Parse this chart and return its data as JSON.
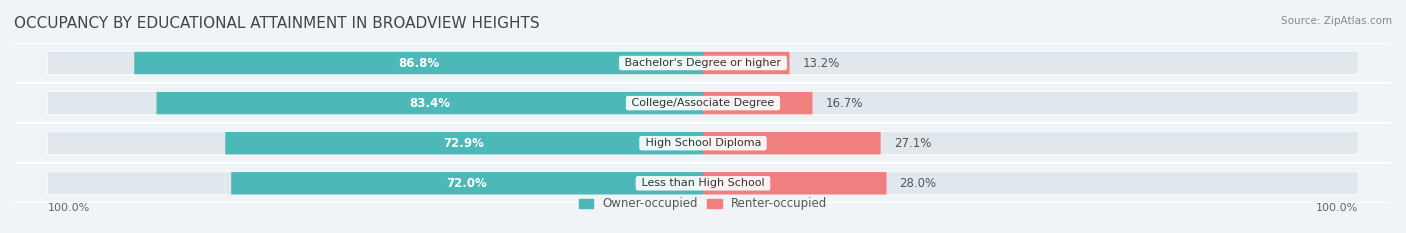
{
  "title": "OCCUPANCY BY EDUCATIONAL ATTAINMENT IN BROADVIEW HEIGHTS",
  "source": "Source: ZipAtlas.com",
  "categories": [
    "Less than High School",
    "High School Diploma",
    "College/Associate Degree",
    "Bachelor's Degree or higher"
  ],
  "owner_pct": [
    72.0,
    72.9,
    83.4,
    86.8
  ],
  "renter_pct": [
    28.0,
    27.1,
    16.7,
    13.2
  ],
  "owner_color": "#4DB8B8",
  "renter_color": "#F08080",
  "bg_color": "#f0f4f7",
  "bar_bg_color": "#e0e8ee",
  "title_fontsize": 11,
  "label_fontsize": 8.5,
  "tick_fontsize": 8,
  "legend_fontsize": 8.5,
  "axis_label_left": "100.0%",
  "axis_label_right": "100.0%",
  "bar_height": 0.55,
  "bar_gap": 1.0
}
